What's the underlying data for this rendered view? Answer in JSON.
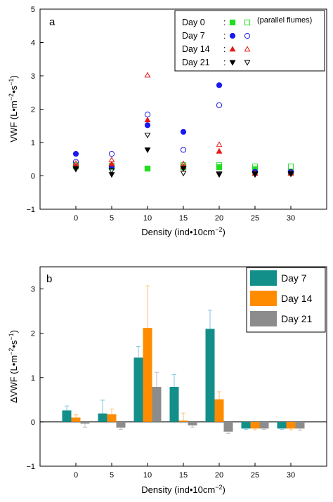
{
  "chart_data": [
    {
      "type": "scatter",
      "panel_label": "a",
      "xlabel_main": "Density (ind•10cm",
      "xlabel_sup": "−2",
      "xlabel_end": ")",
      "ylabel_main": "VWF (L•m",
      "ylabel_sup1": "−2",
      "ylabel_mid": "•s",
      "ylabel_sup2": "−1",
      "ylabel_end": ")",
      "xlim": [
        -5,
        35
      ],
      "ylim": [
        -1,
        5
      ],
      "xticks": [
        "0",
        "5",
        "10",
        "15",
        "20",
        "25",
        "30"
      ],
      "yticks": [
        "−1",
        "0",
        "1",
        "2",
        "3",
        "4",
        "5"
      ],
      "legend_note": "(parallel flumes)",
      "series": [
        {
          "name": "Day  0",
          "color": "#22dd22",
          "marker": "square",
          "x": [
            0,
            5,
            10,
            15,
            20,
            25,
            30
          ],
          "filled": [
            0.28,
            0.26,
            0.22,
            0.26,
            0.26,
            0.2,
            0.12
          ],
          "open": [
            0.32,
            0.3,
            0.22,
            0.32,
            0.32,
            0.28,
            0.28
          ]
        },
        {
          "name": "Day  7",
          "color": "#1a1aee",
          "marker": "circle",
          "x": [
            0,
            5,
            10,
            15,
            20,
            25,
            30
          ],
          "filled": [
            0.66,
            0.28,
            1.52,
            1.32,
            2.72,
            0.12,
            0.1
          ],
          "open": [
            0.42,
            0.66,
            1.84,
            0.78,
            2.12,
            0.12,
            0.12
          ]
        },
        {
          "name": "Day 14",
          "color": "#e81818",
          "marker": "triangle-up",
          "x": [
            0,
            5,
            10,
            15,
            20,
            25,
            30
          ],
          "filled": [
            0.3,
            0.36,
            1.68,
            0.28,
            0.74,
            0.08,
            0.08
          ],
          "open": [
            0.38,
            0.48,
            3.02,
            0.36,
            0.94,
            0.08,
            0.08
          ]
        },
        {
          "name": "Day 21",
          "color": "#000000",
          "marker": "triangle-down",
          "x": [
            0,
            5,
            10,
            15,
            20,
            25,
            30
          ],
          "filled": [
            0.2,
            0.04,
            0.78,
            0.22,
            0.04,
            0.06,
            0.06
          ],
          "open": [
            0.22,
            0.16,
            1.22,
            0.08,
            0.06,
            0.04,
            0.06
          ]
        }
      ]
    },
    {
      "type": "bar",
      "panel_label": "b",
      "xlabel_main": "Density (ind•10cm",
      "xlabel_sup": "−2",
      "xlabel_end": ")",
      "ylabel_main": "ΔVWF (L•m",
      "ylabel_sup1": "−2",
      "ylabel_mid": "•s",
      "ylabel_sup2": "−1",
      "ylabel_end": ")",
      "xlim": [
        -5,
        35
      ],
      "ylim": [
        -1,
        3.5
      ],
      "categories": [
        "0",
        "5",
        "10",
        "15",
        "20",
        "25",
        "30"
      ],
      "yticks": [
        "−1",
        "0",
        "1",
        "2",
        "3"
      ],
      "series": [
        {
          "name": "Day 7",
          "color": "#138f8a",
          "err_color": "#7fc6e6",
          "values": [
            0.26,
            0.19,
            1.45,
            0.79,
            2.1,
            -0.15,
            -0.15
          ],
          "errors": [
            0.1,
            0.3,
            0.25,
            0.28,
            0.42,
            0.02,
            0.02
          ]
        },
        {
          "name": "Day 14",
          "color": "#ff8c00",
          "err_color": "#ffbe70",
          "values": [
            0.1,
            0.17,
            2.12,
            0.03,
            0.51,
            -0.15,
            -0.15
          ],
          "errors": [
            0.06,
            0.12,
            0.95,
            0.17,
            0.17,
            0.03,
            0.03
          ]
        },
        {
          "name": "Day 21",
          "color": "#8c8c8c",
          "err_color": "#bdbdbd",
          "values": [
            -0.04,
            -0.13,
            0.79,
            -0.08,
            -0.22,
            -0.15,
            -0.15
          ],
          "errors": [
            0.08,
            0.04,
            0.33,
            0.04,
            0.04,
            0.02,
            0.04
          ]
        }
      ]
    }
  ]
}
